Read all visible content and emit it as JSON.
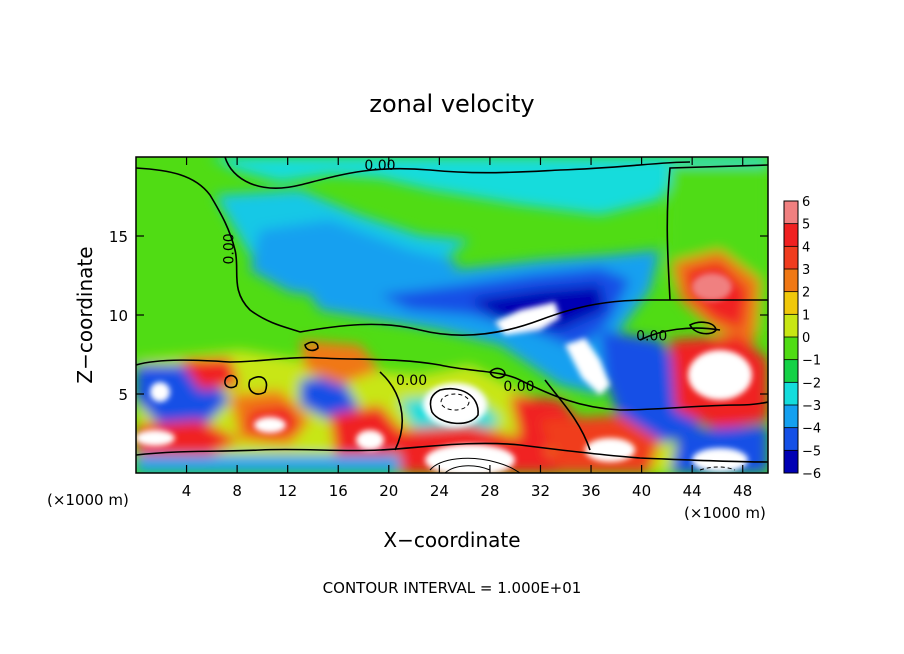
{
  "chart_data": {
    "type": "heatmap",
    "title": "zonal velocity",
    "xlabel": "X−coordinate",
    "ylabel": "Z−coordinate",
    "x_unit_left": "(×1000 m)",
    "x_unit_right": "(×1000 m)",
    "xlim": [
      0,
      50
    ],
    "ylim": [
      0,
      20
    ],
    "x_ticks": [
      4,
      8,
      12,
      16,
      20,
      24,
      28,
      32,
      36,
      40,
      44,
      48
    ],
    "x_tick_labels": [
      "4",
      "8",
      "12",
      "16",
      "20",
      "24",
      "28",
      "32",
      "36",
      "40",
      "44",
      "48"
    ],
    "y_ticks": [
      5,
      10,
      15
    ],
    "y_tick_labels": [
      "5",
      "10",
      "15"
    ],
    "colorbar": {
      "levels": [
        6,
        5,
        4,
        3,
        2,
        1,
        0,
        -1,
        -2,
        -3,
        -4,
        -5,
        -6
      ],
      "labels": [
        "6",
        "5",
        "4",
        "3",
        "2",
        "1",
        "0",
        "−1",
        "−2",
        "−3",
        "−4",
        "−5",
        "−6"
      ],
      "colors": [
        "#f08080",
        "#f02020",
        "#f03c1e",
        "#f07814",
        "#f0c80a",
        "#c8e614",
        "#50dc14",
        "#14d246",
        "#14dcdc",
        "#14a0f0",
        "#1450e6",
        "#0000b4",
        "#780096"
      ]
    },
    "contour_labels": [
      {
        "text": "0.00",
        "x": 19.3,
        "y": 19.5
      },
      {
        "text": "0.00",
        "x": 7.7,
        "y": 14.5
      },
      {
        "text": "0.00",
        "x": 40.8,
        "y": 8.7
      },
      {
        "text": "0.00",
        "x": 21.8,
        "y": 5.9
      },
      {
        "text": "0.00",
        "x": 30.3,
        "y": 5.5
      }
    ],
    "contour_interval": "CONTOUR INTERVAL = 1.000E+01"
  }
}
